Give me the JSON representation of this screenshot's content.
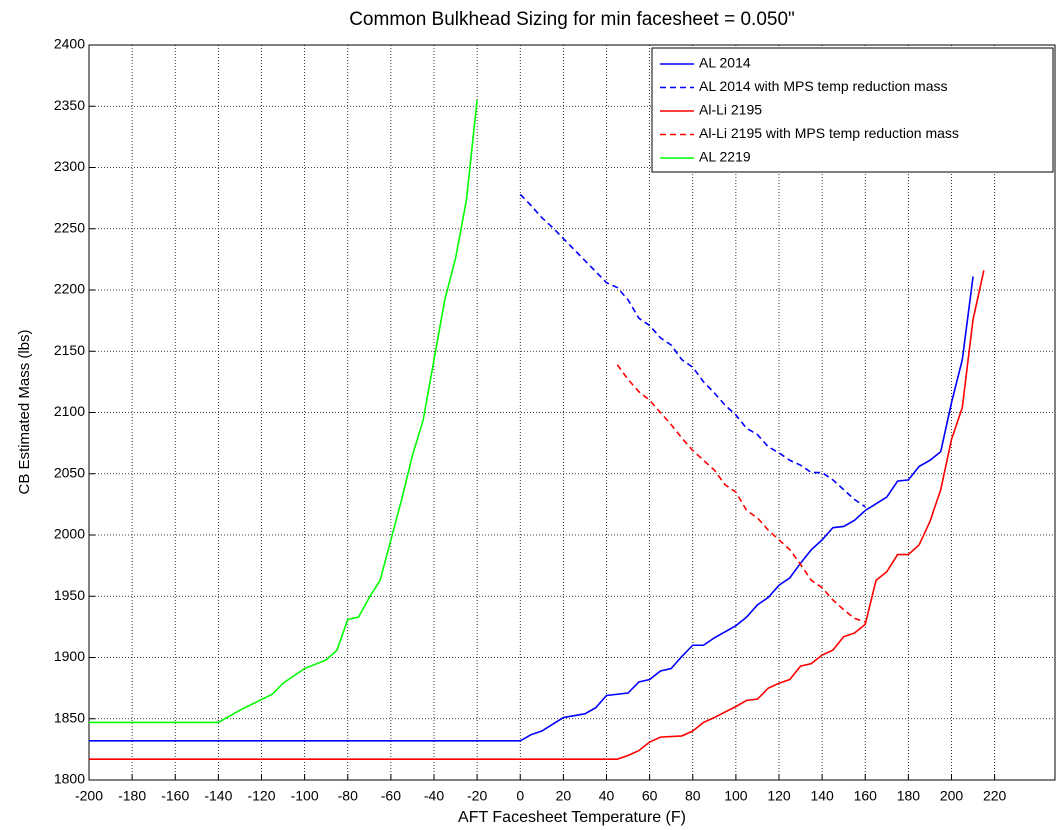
{
  "chart_data": {
    "type": "line",
    "title": "Common Bulkhead Sizing for min facesheet = 0.050\"",
    "x_label": "AFT Facesheet Temperature (F)",
    "y_label": "CB Estimated Mass (lbs)",
    "xlim": [
      -200,
      248
    ],
    "xticks": [
      -200,
      -180,
      -160,
      -140,
      -120,
      -100,
      -80,
      -60,
      -40,
      -20,
      0,
      20,
      40,
      60,
      80,
      100,
      120,
      140,
      160,
      180,
      200,
      220
    ],
    "ylim": [
      1800,
      2400
    ],
    "yticks": [
      1800,
      1850,
      1900,
      1950,
      2000,
      2050,
      2100,
      2150,
      2200,
      2250,
      2300,
      2350,
      2400
    ],
    "grid": true,
    "legend": "upper right",
    "series": [
      {
        "name": "AL 2014",
        "color": "#0000ff",
        "dash": false,
        "x": [
          -200,
          0,
          5,
          10,
          20,
          30,
          35,
          40,
          50,
          55,
          60,
          65,
          70,
          75,
          80,
          85,
          90,
          100,
          105,
          110,
          115,
          120,
          125,
          130,
          135,
          140,
          145,
          150,
          155,
          160,
          170,
          175,
          180,
          185,
          190,
          195,
          200,
          205,
          210
        ],
        "values": [
          1832,
          1832,
          1837,
          1840,
          1851,
          1854,
          1859,
          1869,
          1871,
          1880,
          1882,
          1889,
          1891,
          1901,
          1910,
          1910,
          1916,
          1926,
          1933,
          1943,
          1949,
          1959,
          1965,
          1977,
          1988,
          1996,
          2006,
          2007,
          2012,
          2020,
          2031,
          2044,
          2045,
          2056,
          2061,
          2068,
          2108,
          2143,
          2211
        ]
      },
      {
        "name": "AL 2014 with MPS temp reduction mass",
        "color": "#0000ff",
        "dash": true,
        "x": [
          0,
          5,
          10,
          15,
          20,
          25,
          30,
          35,
          40,
          45,
          50,
          55,
          60,
          65,
          70,
          75,
          80,
          85,
          90,
          95,
          100,
          105,
          110,
          115,
          120,
          125,
          130,
          135,
          140,
          145,
          150,
          155,
          160
        ],
        "values": [
          2278,
          2269,
          2259,
          2251,
          2242,
          2233,
          2224,
          2215,
          2206,
          2202,
          2192,
          2177,
          2171,
          2161,
          2155,
          2143,
          2137,
          2125,
          2116,
          2106,
          2098,
          2087,
          2082,
          2072,
          2067,
          2061,
          2057,
          2051,
          2051,
          2045,
          2037,
          2029,
          2023
        ]
      },
      {
        "name": "Al-Li 2195",
        "color": "#ff0000",
        "dash": false,
        "x": [
          -200,
          45,
          50,
          55,
          60,
          65,
          75,
          80,
          85,
          90,
          100,
          105,
          110,
          115,
          120,
          125,
          130,
          135,
          140,
          145,
          150,
          155,
          160,
          165,
          170,
          175,
          180,
          185,
          190,
          195,
          200,
          205,
          210,
          215
        ],
        "values": [
          1817,
          1817,
          1820,
          1824,
          1831,
          1835,
          1836,
          1840,
          1847,
          1851,
          1860,
          1865,
          1866,
          1875,
          1879,
          1882,
          1893,
          1895,
          1902,
          1906,
          1917,
          1920,
          1927,
          1963,
          1970,
          1984,
          1984,
          1992,
          2011,
          2037,
          2078,
          2104,
          2176,
          2216
        ]
      },
      {
        "name": "Al-Li 2195 with MPS temp reduction mass",
        "color": "#ff0000",
        "dash": true,
        "x": [
          45,
          50,
          55,
          60,
          65,
          70,
          75,
          80,
          85,
          90,
          95,
          100,
          105,
          110,
          115,
          120,
          125,
          130,
          135,
          140,
          145,
          150,
          155,
          160
        ],
        "values": [
          2139,
          2127,
          2117,
          2110,
          2100,
          2090,
          2079,
          2069,
          2061,
          2053,
          2041,
          2035,
          2020,
          2014,
          2004,
          1996,
          1988,
          1976,
          1963,
          1957,
          1947,
          1939,
          1932,
          1929
        ]
      },
      {
        "name": "AL 2219",
        "color": "#00ff00",
        "dash": false,
        "x": [
          -200,
          -140,
          -130,
          -115,
          -110,
          -100,
          -90,
          -85,
          -80,
          -75,
          -70,
          -65,
          -60,
          -55,
          -50,
          -45,
          -40,
          -35,
          -30,
          -25,
          -20
        ],
        "values": [
          1847,
          1847,
          1857,
          1870,
          1879,
          1891,
          1898,
          1906,
          1931,
          1933,
          1949,
          1963,
          1996,
          2029,
          2065,
          2094,
          2143,
          2192,
          2226,
          2273,
          2355
        ]
      }
    ]
  }
}
